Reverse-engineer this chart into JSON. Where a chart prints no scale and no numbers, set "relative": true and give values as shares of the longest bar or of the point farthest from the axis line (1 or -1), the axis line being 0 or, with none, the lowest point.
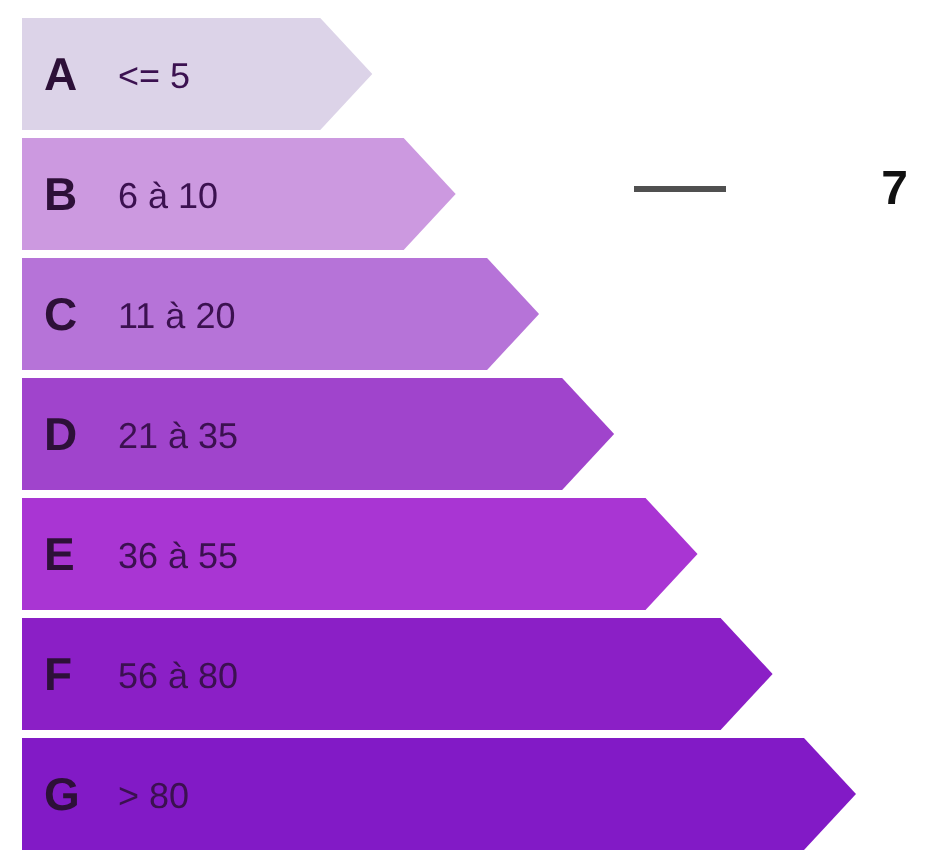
{
  "chart_data": {
    "type": "bar",
    "orientation": "horizontal",
    "relative": true,
    "categories": [
      "A <= 5",
      "B 6 à 10",
      "C 11 à 20",
      "D 21 à 35",
      "E 36 à 55",
      "F 56 à 80",
      "G > 80"
    ],
    "values": [
      0.42,
      0.52,
      0.62,
      0.71,
      0.81,
      0.9,
      1
    ],
    "colors": [
      "#dcd3e8",
      "#cc99e0",
      "#b673d8",
      "#a044cc",
      "#a935d3",
      "#8b1fc6",
      "#821ac6"
    ],
    "annotations": [
      "7"
    ]
  }
}
